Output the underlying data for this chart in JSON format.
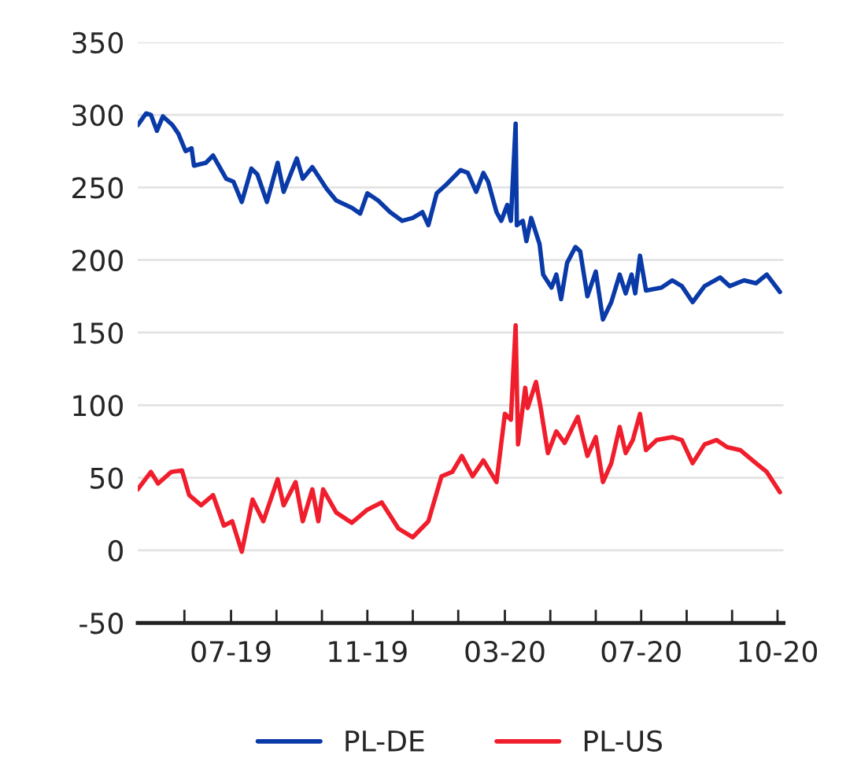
{
  "chart_data": {
    "type": "line",
    "ylim": [
      -50,
      350
    ],
    "yticks": [
      -50,
      0,
      50,
      100,
      150,
      200,
      250,
      300,
      350
    ],
    "xlim": [
      "2019-04-14",
      "2020-10-05"
    ],
    "xticks": [
      {
        "value": "2019-05-23",
        "label": null
      },
      {
        "value": "2019-07-01",
        "label": "07-19"
      },
      {
        "value": "2019-08-08",
        "label": null
      },
      {
        "value": "2019-09-15",
        "label": null
      },
      {
        "value": "2019-10-23",
        "label": "11-19"
      },
      {
        "value": "2019-11-30",
        "label": null
      },
      {
        "value": "2020-01-07",
        "label": null
      },
      {
        "value": "2020-02-15",
        "label": "03-20"
      },
      {
        "value": "2020-03-24",
        "label": null
      },
      {
        "value": "2020-05-01",
        "label": null
      },
      {
        "value": "2020-06-08",
        "label": "07-20"
      },
      {
        "value": "2020-07-16",
        "label": null
      },
      {
        "value": "2020-08-23",
        "label": null
      },
      {
        "value": "2020-09-30",
        "label": "10-20"
      }
    ],
    "grid": "y",
    "legend": "bottom",
    "line_style": "solid",
    "marker": "none",
    "series": [
      {
        "name": "PL-DE",
        "color": "#0a3aa8",
        "x": [
          "2019-04-14",
          "2019-04-21",
          "2019-04-25",
          "2019-04-30",
          "2019-05-05",
          "2019-05-13",
          "2019-05-18",
          "2019-05-24",
          "2019-05-29",
          "2019-05-31",
          "2019-06-10",
          "2019-06-16",
          "2019-06-27",
          "2019-07-03",
          "2019-07-10",
          "2019-07-18",
          "2019-07-23",
          "2019-07-31",
          "2019-08-09",
          "2019-08-14",
          "2019-08-25",
          "2019-08-30",
          "2019-09-07",
          "2019-09-19",
          "2019-09-27",
          "2019-10-10",
          "2019-10-17",
          "2019-10-23",
          "2019-11-01",
          "2019-11-11",
          "2019-11-21",
          "2019-11-30",
          "2019-12-08",
          "2019-12-13",
          "2019-12-20",
          "2019-12-28",
          "2020-01-09",
          "2020-01-15",
          "2020-01-22",
          "2020-01-28",
          "2020-02-01",
          "2020-02-08",
          "2020-02-12",
          "2020-02-17",
          "2020-02-20",
          "2020-02-24",
          "2020-02-25",
          "2020-03-01",
          "2020-03-04",
          "2020-03-08",
          "2020-03-15",
          "2020-03-18",
          "2020-03-25",
          "2020-03-29",
          "2020-04-02",
          "2020-04-07",
          "2020-04-14",
          "2020-04-18",
          "2020-04-24",
          "2020-05-01",
          "2020-05-07",
          "2020-05-14",
          "2020-05-21",
          "2020-05-26",
          "2020-05-31",
          "2020-06-03",
          "2020-06-07",
          "2020-06-12",
          "2020-06-25",
          "2020-07-04",
          "2020-07-12",
          "2020-07-21",
          "2020-07-31",
          "2020-08-13",
          "2020-08-21",
          "2020-09-02",
          "2020-09-12",
          "2020-09-21",
          "2020-10-02"
        ],
        "values": [
          293,
          301,
          300,
          289,
          299,
          293,
          287,
          275,
          277,
          265,
          267,
          272,
          256,
          254,
          240,
          263,
          259,
          240,
          267,
          247,
          270,
          256,
          264,
          249,
          241,
          236,
          232,
          246,
          241,
          233,
          227,
          229,
          233,
          224,
          246,
          252,
          262,
          260,
          247,
          260,
          254,
          233,
          227,
          238,
          227,
          294,
          224,
          227,
          213,
          229,
          211,
          190,
          181,
          190,
          173,
          198,
          209,
          206,
          175,
          192,
          159,
          171,
          190,
          177,
          190,
          177,
          203,
          179,
          181,
          186,
          182,
          171,
          182,
          188,
          182,
          186,
          184,
          190,
          178
        ]
      },
      {
        "name": "PL-US",
        "color": "#f01e2c",
        "x": [
          "2019-04-14",
          "2019-04-25",
          "2019-05-01",
          "2019-05-12",
          "2019-05-21",
          "2019-05-27",
          "2019-06-06",
          "2019-06-16",
          "2019-06-25",
          "2019-07-02",
          "2019-07-10",
          "2019-07-19",
          "2019-07-28",
          "2019-08-09",
          "2019-08-14",
          "2019-08-24",
          "2019-08-30",
          "2019-09-07",
          "2019-09-12",
          "2019-09-16",
          "2019-09-27",
          "2019-10-10",
          "2019-10-23",
          "2019-11-04",
          "2019-11-11",
          "2019-11-18",
          "2019-11-30",
          "2019-12-13",
          "2019-12-24",
          "2020-01-02",
          "2020-01-10",
          "2020-01-19",
          "2020-01-28",
          "2020-02-08",
          "2020-02-15",
          "2020-02-20",
          "2020-02-24",
          "2020-02-26",
          "2020-03-03",
          "2020-03-05",
          "2020-03-12",
          "2020-03-16",
          "2020-03-22",
          "2020-03-29",
          "2020-04-05",
          "2020-04-16",
          "2020-04-24",
          "2020-05-01",
          "2020-05-07",
          "2020-05-14",
          "2020-05-21",
          "2020-05-26",
          "2020-06-01",
          "2020-06-07",
          "2020-06-12",
          "2020-06-21",
          "2020-07-04",
          "2020-07-12",
          "2020-07-21",
          "2020-07-31",
          "2020-08-10",
          "2020-08-19",
          "2020-08-30",
          "2020-09-12",
          "2020-09-21",
          "2020-10-02"
        ],
        "values": [
          42,
          54,
          46,
          54,
          55,
          38,
          31,
          38,
          17,
          20,
          -1,
          35,
          20,
          49,
          31,
          47,
          20,
          42,
          20,
          42,
          26,
          19,
          28,
          33,
          24,
          15,
          9,
          20,
          51,
          54,
          65,
          51,
          62,
          47,
          94,
          90,
          155,
          73,
          112,
          98,
          116,
          98,
          67,
          82,
          74,
          92,
          65,
          78,
          47,
          60,
          85,
          67,
          76,
          94,
          69,
          76,
          78,
          76,
          60,
          73,
          76,
          71,
          69,
          60,
          54,
          40
        ]
      }
    ]
  }
}
